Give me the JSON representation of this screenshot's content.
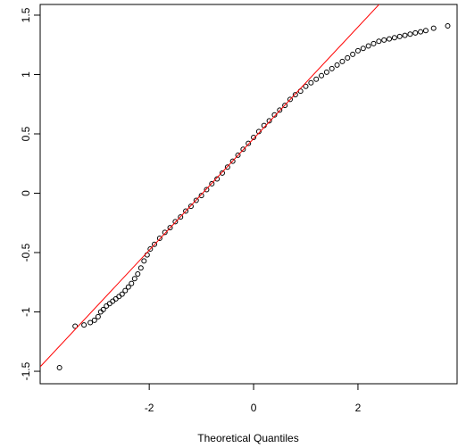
{
  "chart_data": {
    "type": "scatter",
    "x_label": "Theoretical Quantiles",
    "xlim": [
      -4.09,
      3.9
    ],
    "ylim": [
      -1.605,
      1.59
    ],
    "xticks": [
      -2,
      0,
      2
    ],
    "yticks": [
      -1.5,
      -1.0,
      -0.5,
      0.0,
      0.5,
      1.0,
      1.5
    ],
    "color": "#000000",
    "reference_line": {
      "intercept": 0.46,
      "slope": 0.47,
      "color": "#ff0000"
    },
    "x": [
      -3.72,
      -3.42,
      -3.25,
      -3.13,
      -3.05,
      -2.98,
      -2.93,
      -2.88,
      -2.82,
      -2.76,
      -2.7,
      -2.64,
      -2.58,
      -2.52,
      -2.46,
      -2.4,
      -2.34,
      -2.28,
      -2.22,
      -2.16,
      -2.1,
      -2.04,
      -1.98,
      -1.9,
      -1.8,
      -1.7,
      -1.6,
      -1.5,
      -1.4,
      -1.3,
      -1.2,
      -1.1,
      -1.0,
      -0.9,
      -0.8,
      -0.7,
      -0.6,
      -0.5,
      -0.4,
      -0.3,
      -0.2,
      -0.1,
      0.0,
      0.1,
      0.2,
      0.3,
      0.4,
      0.5,
      0.6,
      0.7,
      0.8,
      0.9,
      1.0,
      1.1,
      1.2,
      1.3,
      1.4,
      1.5,
      1.6,
      1.7,
      1.8,
      1.9,
      2.0,
      2.1,
      2.2,
      2.3,
      2.4,
      2.5,
      2.6,
      2.7,
      2.8,
      2.9,
      3.0,
      3.1,
      3.2,
      3.3,
      3.45,
      3.72
    ],
    "values": [
      -1.47,
      -1.12,
      -1.11,
      -1.09,
      -1.07,
      -1.04,
      -1.0,
      -0.98,
      -0.95,
      -0.93,
      -0.91,
      -0.89,
      -0.87,
      -0.85,
      -0.82,
      -0.79,
      -0.76,
      -0.72,
      -0.68,
      -0.63,
      -0.57,
      -0.52,
      -0.47,
      -0.43,
      -0.38,
      -0.33,
      -0.29,
      -0.24,
      -0.2,
      -0.15,
      -0.11,
      -0.06,
      -0.02,
      0.03,
      0.08,
      0.12,
      0.17,
      0.22,
      0.27,
      0.32,
      0.37,
      0.42,
      0.47,
      0.52,
      0.57,
      0.61,
      0.66,
      0.7,
      0.74,
      0.79,
      0.83,
      0.86,
      0.9,
      0.93,
      0.96,
      0.99,
      1.02,
      1.05,
      1.08,
      1.11,
      1.14,
      1.17,
      1.2,
      1.22,
      1.24,
      1.26,
      1.28,
      1.29,
      1.3,
      1.31,
      1.32,
      1.33,
      1.34,
      1.35,
      1.36,
      1.37,
      1.39,
      1.41
    ]
  }
}
